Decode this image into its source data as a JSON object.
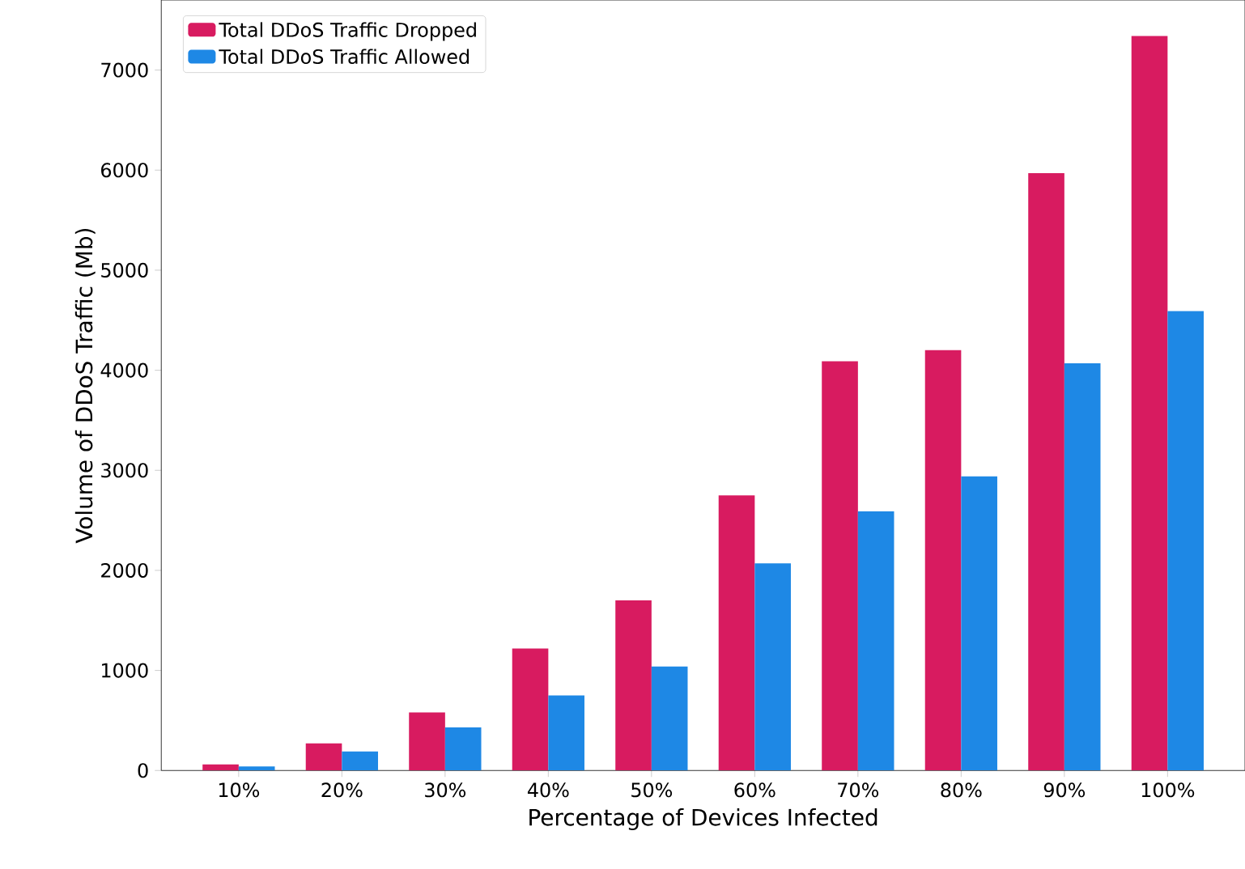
{
  "chart_data": {
    "type": "bar",
    "xlabel": "Percentage of Devices Infected",
    "ylabel": "Volume of DDoS Traffic (Mb)",
    "categories": [
      "10%",
      "20%",
      "30%",
      "40%",
      "50%",
      "60%",
      "70%",
      "80%",
      "90%",
      "100%"
    ],
    "series": [
      {
        "name": "Total DDoS Traffic Dropped",
        "color": "#d81b60",
        "values": [
          60,
          270,
          580,
          1220,
          1700,
          2750,
          4090,
          4200,
          5970,
          7340
        ]
      },
      {
        "name": "Total DDoS Traffic Allowed",
        "color": "#1e88e5",
        "values": [
          40,
          190,
          430,
          750,
          1040,
          2070,
          2590,
          2940,
          4070,
          4590
        ]
      }
    ],
    "ylim": [
      0,
      7700
    ],
    "yticks": [
      0,
      1000,
      2000,
      3000,
      4000,
      5000,
      6000,
      7000
    ],
    "legend": "top left",
    "grid": false
  }
}
